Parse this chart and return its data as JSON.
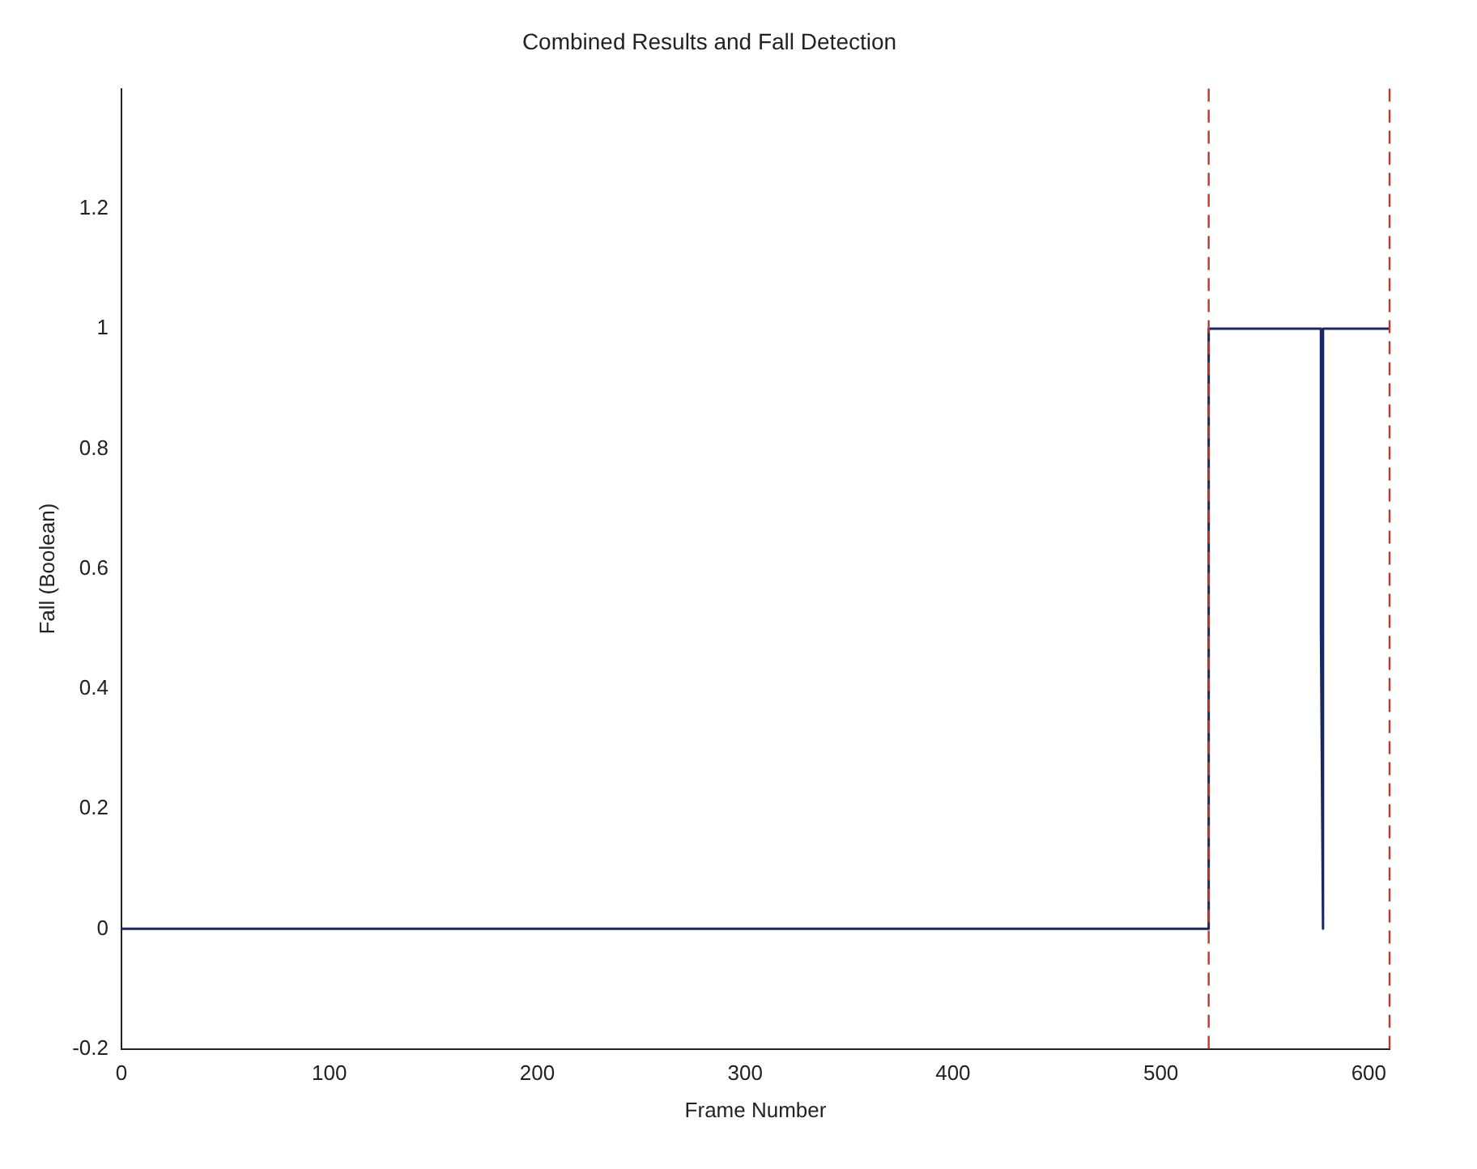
{
  "chart_data": {
    "type": "line",
    "title": "Combined Results and Fall Detection",
    "xlabel": "Frame Number",
    "ylabel": "Fall (Boolean)",
    "series": [
      {
        "color": "#1c2660",
        "x": [
          0,
          523,
          523,
          577,
          577,
          578,
          578,
          610
        ],
        "values": [
          0,
          0,
          1,
          1,
          0.5,
          0,
          1,
          1
        ]
      }
    ],
    "xlim": [
      0,
      610
    ],
    "xticks": [
      0,
      100,
      200,
      300,
      400,
      500,
      600
    ],
    "ylim": [
      -0.2,
      1.4
    ],
    "yticks": [
      -0.2,
      0,
      0.2,
      0.4,
      0.6,
      0.8,
      1,
      1.2
    ],
    "ref_lines": [
      {
        "axis": "x",
        "value": 523,
        "color": "#c0392b",
        "line_style": "dashed"
      },
      {
        "axis": "x",
        "value": 610,
        "color": "#c0392b",
        "line_style": "dashed"
      }
    ],
    "grid": false,
    "legend": false,
    "marker": "none",
    "line_style": "solid"
  }
}
